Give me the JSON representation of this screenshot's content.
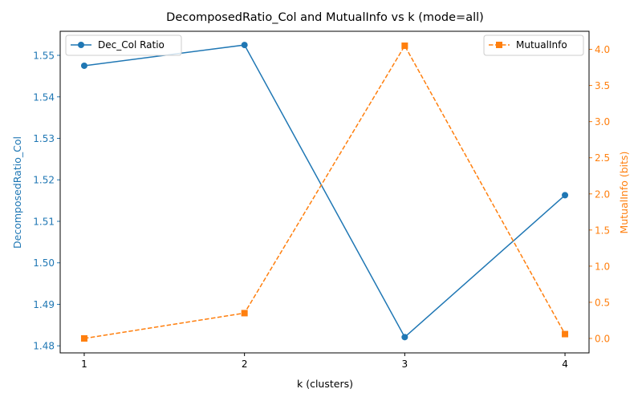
{
  "chart_data": {
    "type": "line",
    "title": "DecomposedRatio_Col and MutualInfo vs k (mode=all)",
    "xlabel": "k (clusters)",
    "x": [
      1,
      2,
      3,
      4
    ],
    "x_ticks": [
      "1",
      "2",
      "3",
      "4"
    ],
    "xlim": [
      0.85,
      4.15
    ],
    "grid": false,
    "left_axis": {
      "label": "DecomposedRatio_Col",
      "color": "#1f77b4",
      "ylim": [
        1.4783,
        1.5558
      ],
      "ticks": [
        1.48,
        1.49,
        1.5,
        1.51,
        1.52,
        1.53,
        1.54,
        1.55
      ],
      "tick_labels": [
        "1.48",
        "1.49",
        "1.50",
        "1.51",
        "1.52",
        "1.53",
        "1.54",
        "1.55"
      ]
    },
    "right_axis": {
      "label": "MutualInfo (bits)",
      "color": "#ff7f0e",
      "ylim": [
        -0.2,
        4.25
      ],
      "ticks": [
        0.0,
        0.5,
        1.0,
        1.5,
        2.0,
        2.5,
        3.0,
        3.5,
        4.0
      ],
      "tick_labels": [
        "0.0",
        "0.5",
        "1.0",
        "1.5",
        "2.0",
        "2.5",
        "3.0",
        "3.5",
        "4.0"
      ]
    },
    "series": [
      {
        "name": "Dec_Col Ratio",
        "axis": "left",
        "color": "#1f77b4",
        "marker": "circle",
        "line_style": "solid",
        "values": [
          1.5475,
          1.5525,
          1.4821,
          1.5163
        ]
      },
      {
        "name": "MutualInfo",
        "axis": "right",
        "color": "#ff7f0e",
        "marker": "square",
        "line_style": "dashed",
        "values": [
          0.0,
          0.35,
          4.05,
          0.06
        ]
      }
    ],
    "legends": [
      {
        "series": "Dec_Col Ratio",
        "placement": "top-left"
      },
      {
        "series": "MutualInfo",
        "placement": "top-right"
      }
    ]
  }
}
